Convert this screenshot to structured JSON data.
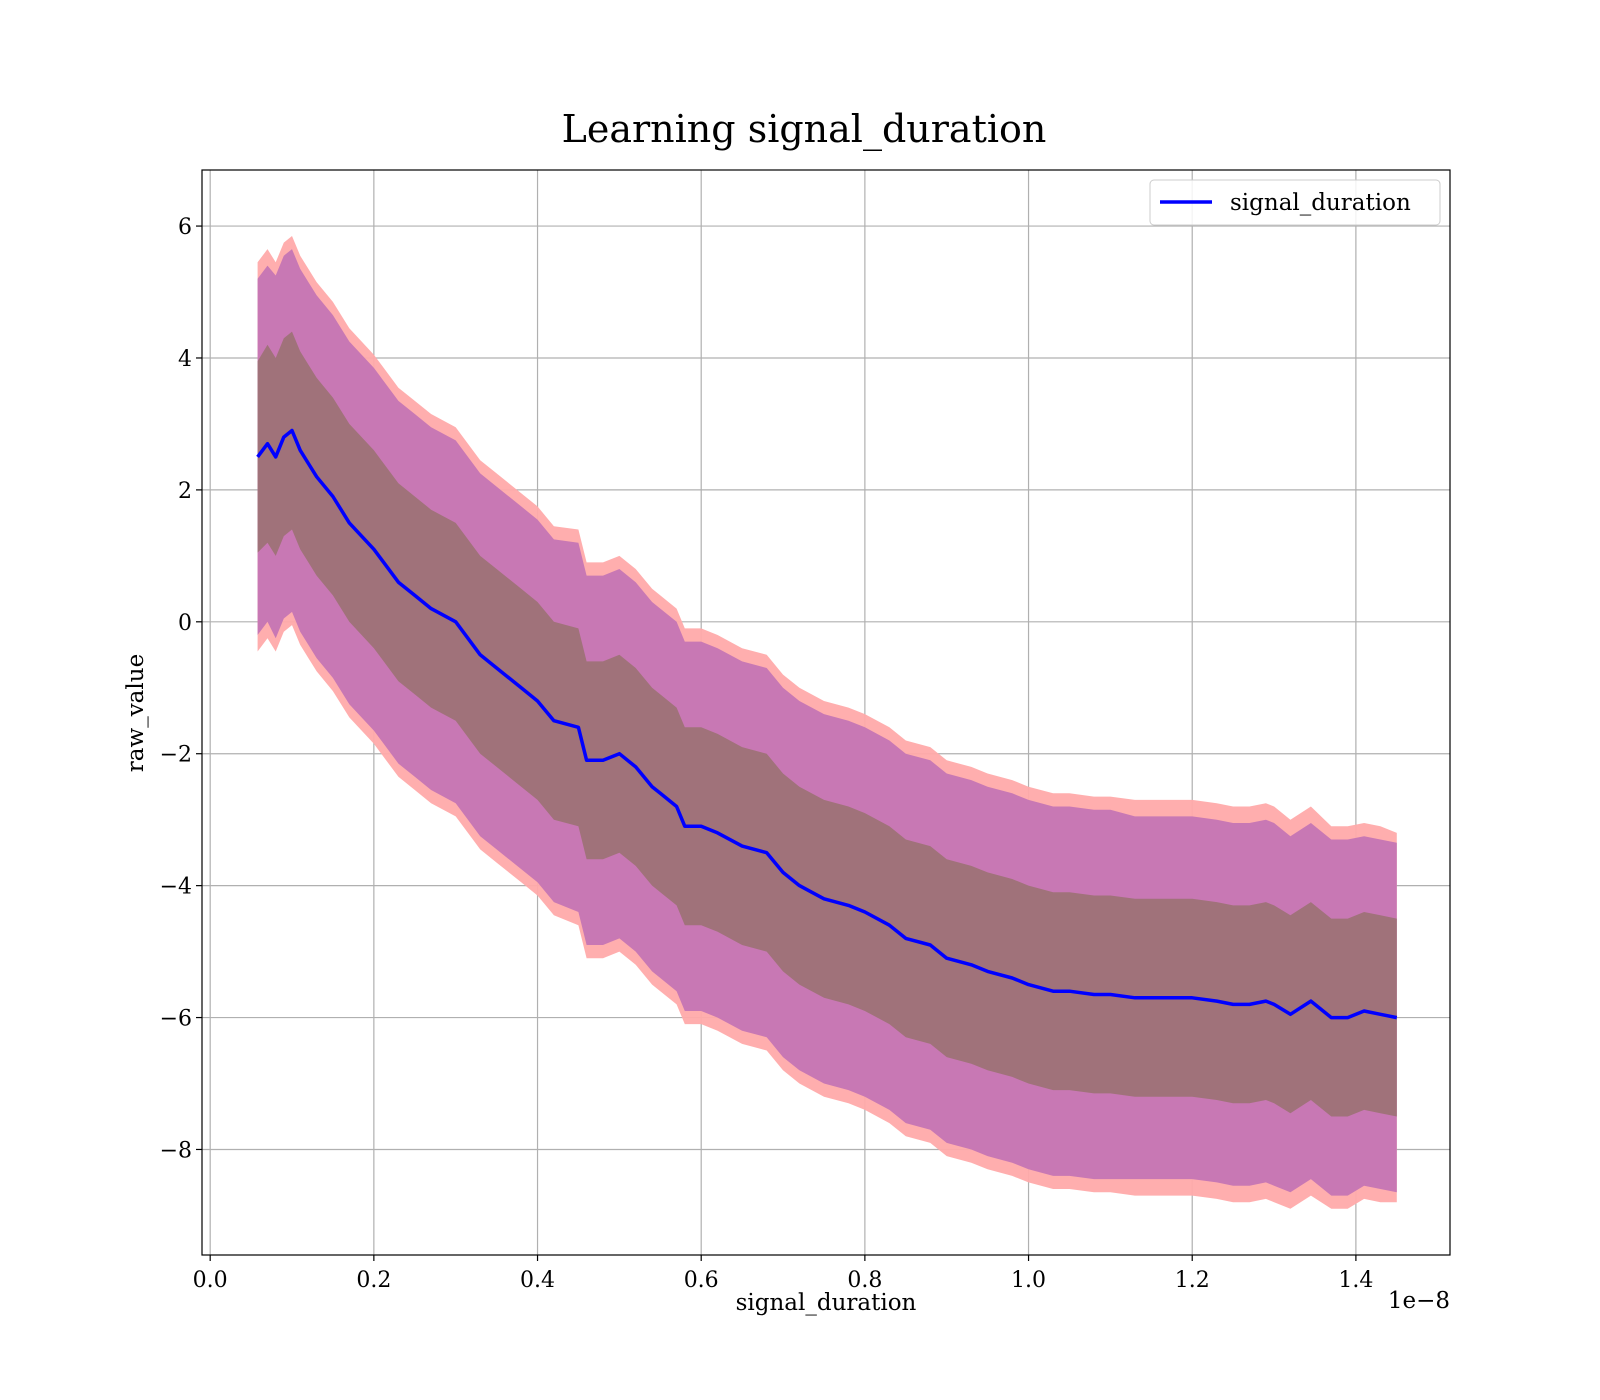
{
  "chart_data": {
    "type": "line",
    "title": "Learning signal_duration",
    "xlabel": "signal_duration",
    "ylabel": "raw_value",
    "x_offset_label": "1e−8",
    "xlim": [
      -0.01,
      1.515
    ],
    "ylim": [
      -9.6,
      6.85
    ],
    "xticks": [
      0.0,
      0.2,
      0.4,
      0.6,
      0.8,
      1.0,
      1.2,
      1.4
    ],
    "xtick_labels": [
      "0.0",
      "0.2",
      "0.4",
      "0.6",
      "0.8",
      "1.0",
      "1.2",
      "1.4"
    ],
    "yticks": [
      -8,
      -6,
      -4,
      -2,
      0,
      2,
      4,
      6
    ],
    "ytick_labels": [
      "−8",
      "−6",
      "−4",
      "−2",
      "0",
      "2",
      "4",
      "6"
    ],
    "grid": true,
    "legend_position": "top-right",
    "series": [
      {
        "name": "signal_duration",
        "color": "#0000ff",
        "x": [
          0.058,
          0.07,
          0.08,
          0.09,
          0.1,
          0.11,
          0.12,
          0.13,
          0.15,
          0.17,
          0.2,
          0.23,
          0.25,
          0.27,
          0.3,
          0.33,
          0.35,
          0.38,
          0.4,
          0.42,
          0.45,
          0.46,
          0.48,
          0.5,
          0.52,
          0.54,
          0.55,
          0.57,
          0.58,
          0.6,
          0.62,
          0.65,
          0.68,
          0.7,
          0.72,
          0.75,
          0.78,
          0.8,
          0.83,
          0.85,
          0.88,
          0.9,
          0.93,
          0.95,
          0.98,
          1.0,
          1.03,
          1.05,
          1.08,
          1.1,
          1.13,
          1.15,
          1.18,
          1.2,
          1.23,
          1.25,
          1.27,
          1.29,
          1.3,
          1.32,
          1.345,
          1.37,
          1.39,
          1.41,
          1.43,
          1.45
        ],
        "values": [
          2.5,
          2.7,
          2.5,
          2.8,
          2.9,
          2.6,
          2.4,
          2.2,
          1.9,
          1.5,
          1.1,
          0.6,
          0.4,
          0.2,
          0.0,
          -0.5,
          -0.7,
          -1.0,
          -1.2,
          -1.5,
          -1.6,
          -2.1,
          -2.1,
          -2.0,
          -2.2,
          -2.5,
          -2.6,
          -2.8,
          -3.1,
          -3.1,
          -3.2,
          -3.4,
          -3.5,
          -3.8,
          -4.0,
          -4.2,
          -4.3,
          -4.4,
          -4.6,
          -4.8,
          -4.9,
          -5.1,
          -5.2,
          -5.3,
          -5.4,
          -5.5,
          -5.6,
          -5.6,
          -5.65,
          -5.65,
          -5.7,
          -5.7,
          -5.7,
          -5.7,
          -5.75,
          -5.8,
          -5.8,
          -5.75,
          -5.8,
          -5.95,
          -5.75,
          -6.0,
          -6.0,
          -5.9,
          -5.95,
          -6.0
        ],
        "band_inner_halfwidth": [
          1.45,
          1.5,
          1.5,
          1.5,
          1.5,
          1.5,
          1.5,
          1.5,
          1.5,
          1.5,
          1.5,
          1.5,
          1.5,
          1.5,
          1.5,
          1.5,
          1.5,
          1.5,
          1.5,
          1.5,
          1.5,
          1.5,
          1.5,
          1.5,
          1.5,
          1.5,
          1.5,
          1.5,
          1.5,
          1.5,
          1.5,
          1.5,
          1.5,
          1.5,
          1.5,
          1.5,
          1.5,
          1.5,
          1.5,
          1.5,
          1.5,
          1.5,
          1.5,
          1.5,
          1.5,
          1.5,
          1.5,
          1.5,
          1.5,
          1.5,
          1.5,
          1.5,
          1.5,
          1.5,
          1.5,
          1.5,
          1.5,
          1.5,
          1.5,
          1.5,
          1.5,
          1.5,
          1.5,
          1.5,
          1.5,
          1.5
        ],
        "band_outer_halfwidth": [
          2.7,
          2.7,
          2.75,
          2.75,
          2.75,
          2.75,
          2.75,
          2.75,
          2.75,
          2.75,
          2.75,
          2.75,
          2.75,
          2.75,
          2.75,
          2.75,
          2.75,
          2.75,
          2.75,
          2.75,
          2.8,
          2.8,
          2.8,
          2.8,
          2.8,
          2.8,
          2.8,
          2.8,
          2.8,
          2.8,
          2.8,
          2.8,
          2.8,
          2.8,
          2.8,
          2.8,
          2.8,
          2.8,
          2.8,
          2.8,
          2.8,
          2.8,
          2.8,
          2.8,
          2.8,
          2.8,
          2.8,
          2.8,
          2.8,
          2.8,
          2.75,
          2.75,
          2.75,
          2.75,
          2.75,
          2.75,
          2.75,
          2.75,
          2.75,
          2.7,
          2.7,
          2.7,
          2.7,
          2.65,
          2.65,
          2.65
        ],
        "band_extra_halfwidth": [
          2.95,
          2.95,
          2.95,
          2.95,
          2.95,
          2.95,
          2.95,
          2.95,
          2.95,
          2.95,
          2.95,
          2.95,
          2.95,
          2.95,
          2.95,
          2.95,
          2.95,
          2.95,
          2.95,
          2.95,
          3.0,
          3.0,
          3.0,
          3.0,
          3.0,
          3.0,
          3.0,
          3.0,
          3.0,
          3.0,
          3.0,
          3.0,
          3.0,
          3.0,
          3.0,
          3.0,
          3.0,
          3.0,
          3.0,
          3.0,
          3.0,
          3.0,
          3.0,
          3.0,
          3.0,
          3.0,
          3.0,
          3.0,
          3.0,
          3.0,
          3.0,
          3.0,
          3.0,
          3.0,
          3.0,
          3.0,
          3.0,
          3.0,
          3.0,
          2.95,
          2.95,
          2.9,
          2.9,
          2.85,
          2.85,
          2.8
        ],
        "band_inner_color": "#a0727a",
        "band_outer_color": "#c878b4",
        "band_extra_color": "#ffaaaa"
      }
    ]
  }
}
